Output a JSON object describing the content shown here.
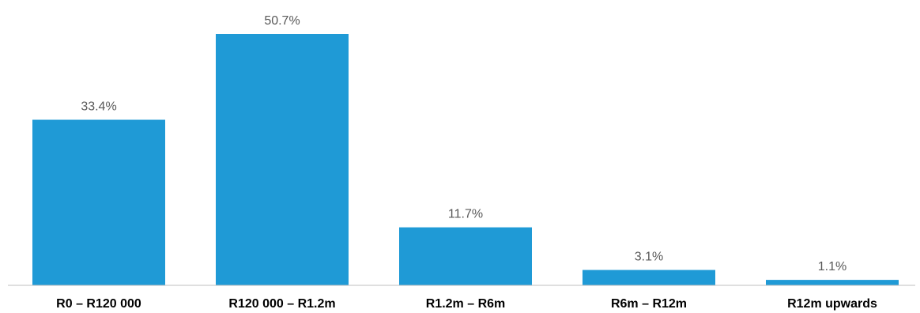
{
  "chart_data": {
    "type": "bar",
    "title": "",
    "xlabel": "",
    "ylabel": "",
    "categories": [
      "R0 – R120 000",
      "R120 000 – R1.2m",
      "R1.2m – R6m",
      "R6m – R12m",
      "R12m upwards"
    ],
    "values": [
      33.4,
      50.7,
      11.7,
      3.1,
      1.1
    ],
    "data_labels": [
      "33.4%",
      "50.7%",
      "11.7%",
      "3.1%",
      "1.1%"
    ],
    "ylim": [
      0,
      50.7
    ],
    "grid": false,
    "legend": "none",
    "bar_color": "#1f9ad6",
    "axis_color": "#bfbfbf"
  }
}
